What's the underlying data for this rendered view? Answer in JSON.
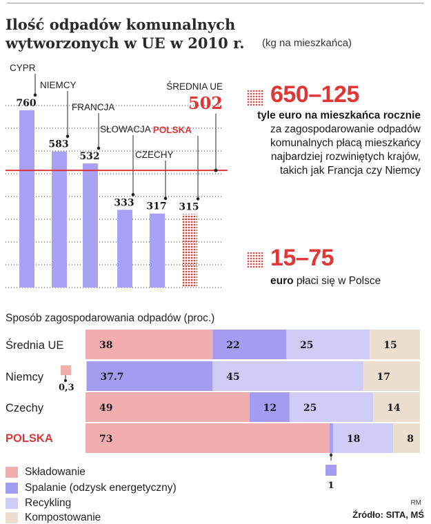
{
  "header": {
    "title_line1": "Ilość odpadów komunalnych",
    "title_line2": "wytworzonych w UE w 2010 r.",
    "unit": "(kg na mieszkańca)"
  },
  "colors": {
    "blue": "#a9a1f3",
    "red": "#e03636",
    "landfill": "#f1aeae",
    "incineration": "#a49cf0",
    "recycling": "#cfcdf8",
    "composting": "#ecdfcf"
  },
  "chart_data": [
    {
      "type": "bar",
      "categories": [
        "CYPR",
        "NIEMCY",
        "FRANCJA",
        "SŁOWACJA",
        "CZECHY",
        "POLSKA"
      ],
      "values": [
        760,
        583,
        532,
        333,
        317,
        315
      ],
      "value_labels": [
        "760",
        "583",
        "532",
        "333",
        "317",
        "315"
      ],
      "highlight": "POLSKA",
      "reference_line": {
        "label": "ŚREDNIA UE",
        "value": 502,
        "value_label": "502"
      },
      "ylim": [
        0,
        800
      ],
      "grid": "dotted"
    },
    {
      "type": "bar",
      "orientation": "horizontal",
      "stacked": true,
      "title": "Sposób zagospodarowania odpadów (proc.)",
      "categories": [
        "Średnia UE",
        "Niemcy",
        "Czechy",
        "POLSKA"
      ],
      "series": [
        {
          "name": "Składowanie",
          "values": [
            38,
            0.3,
            49,
            73
          ],
          "labels": [
            "38",
            "0,3",
            "49",
            "73"
          ]
        },
        {
          "name": "Spalanie (odzysk energetyczny)",
          "values": [
            22,
            37.7,
            12,
            1
          ],
          "labels": [
            "22",
            "37.7",
            "12",
            "1"
          ]
        },
        {
          "name": "Recykling",
          "values": [
            25,
            45,
            25,
            18
          ],
          "labels": [
            "25",
            "45",
            "25",
            "18"
          ]
        },
        {
          "name": "Kompostowanie",
          "values": [
            15,
            17,
            14,
            8
          ],
          "labels": [
            "15",
            "17",
            "14",
            "8"
          ]
        }
      ],
      "xlim": [
        0,
        100
      ]
    }
  ],
  "callouts": [
    {
      "big": "650–125",
      "text_bold": "tyle euro na mieszkańca rocznie",
      "text_rest": "za zagospodarowanie odpadów komunalnych płacą mieszkańcy najbardziej rozwiniętych krajów, takich jak Francja czy Niemcy"
    },
    {
      "big": "15–75",
      "text_bold": "euro",
      "text_rest": "płaci się w Polsce"
    }
  ],
  "credit": "RM",
  "source": "Źródło: SITA, MŚ"
}
